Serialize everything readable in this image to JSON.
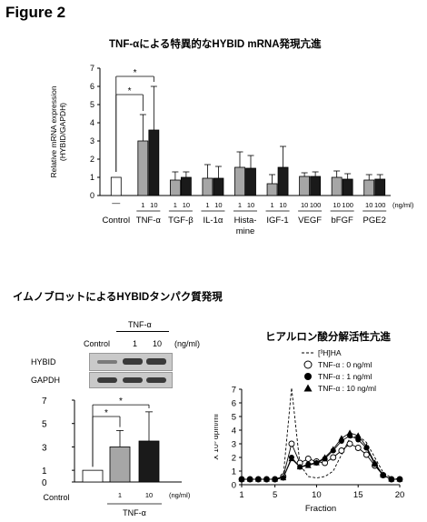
{
  "figure_title": "Figure 2",
  "panel_a": {
    "title": "TNF-αによる特異的なHYBID mRNA発現亢進"
  },
  "panel_b": {
    "title": "イムノブロットによるHYBIDタンパク質発現",
    "treatment": "TNF-α",
    "lane_labels": [
      "Control",
      "1",
      "10"
    ],
    "unit": "(ng/ml)",
    "rows": [
      "HYBID",
      "GAPDH"
    ]
  },
  "panel_c": {
    "title": "ヒアルロン酸分解活性亢進"
  },
  "colors": {
    "control": "#ffffff",
    "low_dose": "#a6a6a6",
    "high_dose": "#1a1a1a"
  },
  "chart_data": [
    {
      "type": "bar",
      "ylabel": "Relative mRNA expression (HYBID/GAPDH)",
      "ylim": [
        0,
        7
      ],
      "yticks": [
        0,
        1,
        2,
        3,
        4,
        5,
        6,
        7
      ],
      "unit_label": "(ng/ml)",
      "groups": [
        {
          "name": "Control",
          "doses": [
            "—"
          ],
          "values": [
            1.0
          ],
          "errors": [
            0.0
          ]
        },
        {
          "name": "TNF-α",
          "doses": [
            "1",
            "10"
          ],
          "values": [
            3.0,
            3.6
          ],
          "errors": [
            1.45,
            2.4
          ]
        },
        {
          "name": "TGF-β",
          "doses": [
            "1",
            "10"
          ],
          "values": [
            0.85,
            1.0
          ],
          "errors": [
            0.45,
            0.3
          ]
        },
        {
          "name": "IL-1α",
          "doses": [
            "1",
            "10"
          ],
          "values": [
            0.95,
            0.95
          ],
          "errors": [
            0.75,
            0.65
          ]
        },
        {
          "name": "Hista-\nmine",
          "doses": [
            "1",
            "10"
          ],
          "values": [
            1.55,
            1.5
          ],
          "errors": [
            0.85,
            0.7
          ]
        },
        {
          "name": "IGF-1",
          "doses": [
            "1",
            "10"
          ],
          "values": [
            0.65,
            1.55
          ],
          "errors": [
            0.5,
            1.15
          ]
        },
        {
          "name": "VEGF",
          "doses": [
            "10",
            "100"
          ],
          "values": [
            1.05,
            1.05
          ],
          "errors": [
            0.2,
            0.25
          ]
        },
        {
          "name": "bFGF",
          "doses": [
            "10",
            "100"
          ],
          "values": [
            1.0,
            0.9
          ],
          "errors": [
            0.35,
            0.3
          ]
        },
        {
          "name": "PGE2",
          "doses": [
            "10",
            "100"
          ],
          "values": [
            0.85,
            0.9
          ],
          "errors": [
            0.3,
            0.25
          ]
        }
      ],
      "significance": [
        "*",
        "*"
      ]
    },
    {
      "type": "bar",
      "ylim": [
        0,
        7
      ],
      "yticks": [
        0,
        1,
        3,
        5,
        7
      ],
      "categories": [
        "Control",
        "1",
        "10"
      ],
      "values": [
        1.0,
        3.0,
        3.5
      ],
      "errors": [
        0.0,
        1.4,
        2.5
      ],
      "group_label": "TNF-α",
      "unit_label": "(ng/ml)",
      "significance": [
        "*",
        "*"
      ]
    },
    {
      "type": "line",
      "xlabel": "Fraction",
      "ylabel": "X 10³  dpm/ml",
      "xlim": [
        1,
        20
      ],
      "ylim": [
        0,
        7
      ],
      "xticks": [
        1,
        5,
        10,
        15,
        20
      ],
      "yticks": [
        0,
        1,
        2,
        3,
        4,
        5,
        6,
        7
      ],
      "x": [
        1,
        2,
        3,
        4,
        5,
        6,
        7,
        8,
        9,
        10,
        11,
        12,
        13,
        14,
        15,
        16,
        17,
        18,
        19,
        20
      ],
      "series": [
        {
          "name": "[³H]HA",
          "style": "dashed",
          "values": [
            0.4,
            0.4,
            0.4,
            0.4,
            0.4,
            0.6,
            7.1,
            1.5,
            0.6,
            0.5,
            0.6,
            1.0,
            2.2,
            3.4,
            3.6,
            3.1,
            2.0,
            0.9,
            0.5,
            0.4
          ]
        },
        {
          "name": "TNF-α : 0 ng/ml",
          "marker": "open-circle",
          "values": [
            0.4,
            0.4,
            0.4,
            0.4,
            0.4,
            0.6,
            3.0,
            1.6,
            1.9,
            1.7,
            1.6,
            2.0,
            2.5,
            3.0,
            2.7,
            2.2,
            1.4,
            0.7,
            0.4,
            0.4
          ]
        },
        {
          "name": "TNF-α : 1 ng/ml",
          "marker": "filled-circle",
          "values": [
            0.4,
            0.4,
            0.4,
            0.4,
            0.4,
            0.5,
            2.0,
            1.3,
            1.5,
            1.6,
            1.9,
            2.5,
            3.2,
            3.6,
            3.3,
            2.7,
            1.5,
            0.7,
            0.4,
            0.4
          ]
        },
        {
          "name": "TNF-α : 10 ng/ml",
          "marker": "filled-triangle",
          "values": [
            0.4,
            0.4,
            0.4,
            0.4,
            0.4,
            0.5,
            1.9,
            1.3,
            1.4,
            1.6,
            2.0,
            2.6,
            3.4,
            3.8,
            3.6,
            2.8,
            1.6,
            0.7,
            0.4,
            0.4
          ]
        }
      ]
    }
  ]
}
